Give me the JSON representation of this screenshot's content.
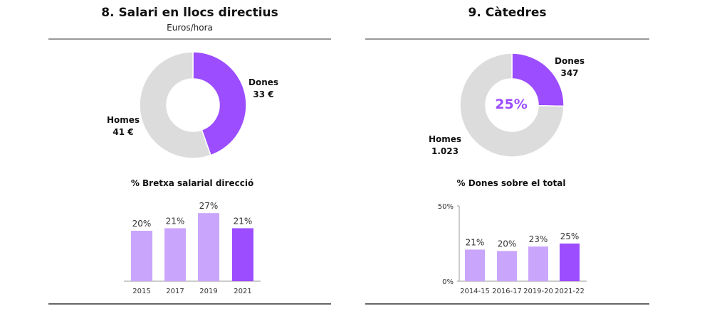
{
  "colors": {
    "women": "#9b4dff",
    "women_light": "#c9a6fb",
    "men": "#dcdcdc",
    "rule": "#333333",
    "axis": "#999999"
  },
  "chart_data": [
    {
      "type": "pie",
      "title": "8. Salari en llocs directius",
      "subtitle": "Euros/hora",
      "donut": true,
      "slices": [
        {
          "name": "Dones",
          "value": 33,
          "label": "33 €"
        },
        {
          "name": "Homes",
          "value": 41,
          "label": "41 €"
        }
      ]
    },
    {
      "type": "bar",
      "title": "% Bretxa salarial direcció",
      "categories": [
        "2015",
        "2017",
        "2019",
        "2021"
      ],
      "values": [
        20,
        21,
        27,
        21
      ],
      "value_labels": [
        "20%",
        "21%",
        "27%",
        "21%"
      ],
      "highlight_last": true,
      "ylim": [
        0,
        30
      ]
    },
    {
      "type": "pie",
      "title": "9. Càtedres",
      "donut": true,
      "center_label": "25%",
      "slices": [
        {
          "name": "Dones",
          "value": 347,
          "label": "347"
        },
        {
          "name": "Homes",
          "value": 1023,
          "label": "1.023"
        }
      ]
    },
    {
      "type": "bar",
      "title": "% Dones sobre el total",
      "categories": [
        "2014-15",
        "2016-17",
        "2019-20",
        "2021-22"
      ],
      "values": [
        21,
        20,
        23,
        25
      ],
      "value_labels": [
        "21%",
        "20%",
        "23%",
        "25%"
      ],
      "ylim": [
        0,
        50
      ],
      "yticks": [
        "0%",
        "50%"
      ],
      "highlight_last": true
    }
  ]
}
